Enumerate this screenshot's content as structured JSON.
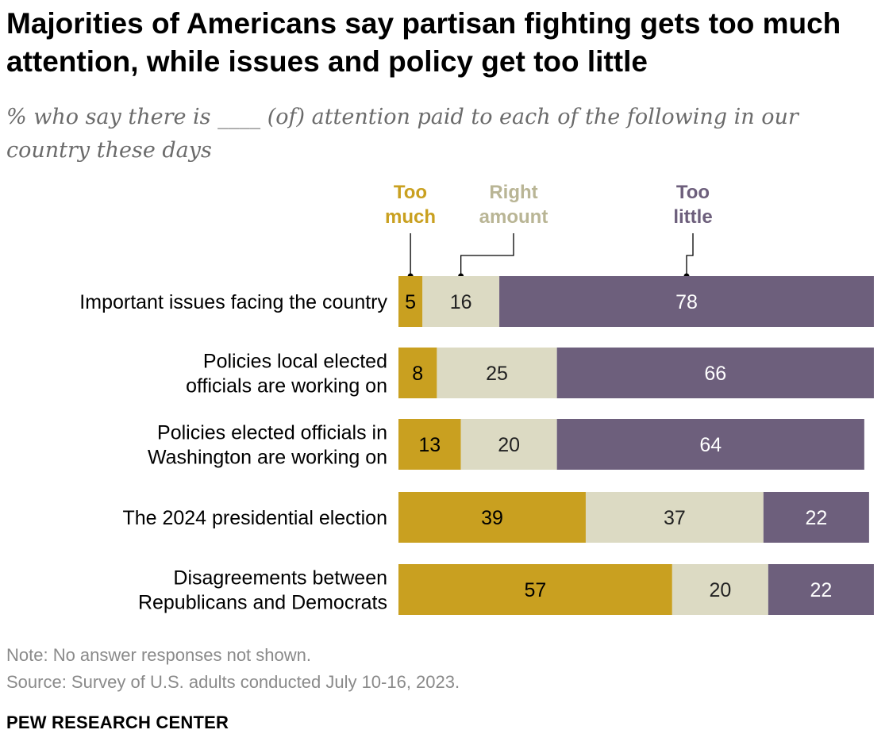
{
  "title": "Majorities of Americans say partisan fighting gets too much attention, while issues and policy get too little",
  "subtitle": "% who say there is ____ (of) attention paid to each of the following in our country these days",
  "note": "Note: No answer responses not shown.",
  "source": "Source: Survey of U.S. adults conducted July 10-16, 2023.",
  "brand": "PEW RESEARCH CENTER",
  "colors": {
    "too_much": "#c9a020",
    "right_amount": "#dcdac3",
    "too_little": "#6d5f7c",
    "legend_right_amount_text": "#b9b595"
  },
  "chart_data": {
    "type": "bar",
    "orientation": "horizontal",
    "stacked": true,
    "categories": [
      [
        "Important issues facing the country"
      ],
      [
        "Policies local elected",
        "officials are working on"
      ],
      [
        "Policies elected officials in",
        "Washington are working on"
      ],
      [
        "The 2024 presidential election"
      ],
      [
        "Disagreements between",
        "Republicans and Democrats"
      ]
    ],
    "series": [
      {
        "name": "Too much",
        "legend_lines": [
          "Too",
          "much"
        ],
        "values": [
          5,
          8,
          13,
          39,
          57
        ]
      },
      {
        "name": "Right amount",
        "legend_lines": [
          "Right",
          "amount"
        ],
        "values": [
          16,
          25,
          20,
          37,
          20
        ]
      },
      {
        "name": "Too little",
        "legend_lines": [
          "Too",
          "little"
        ],
        "values": [
          78,
          66,
          64,
          22,
          22
        ]
      }
    ],
    "xlim": [
      0,
      100
    ],
    "grid": false,
    "legend": "top"
  }
}
